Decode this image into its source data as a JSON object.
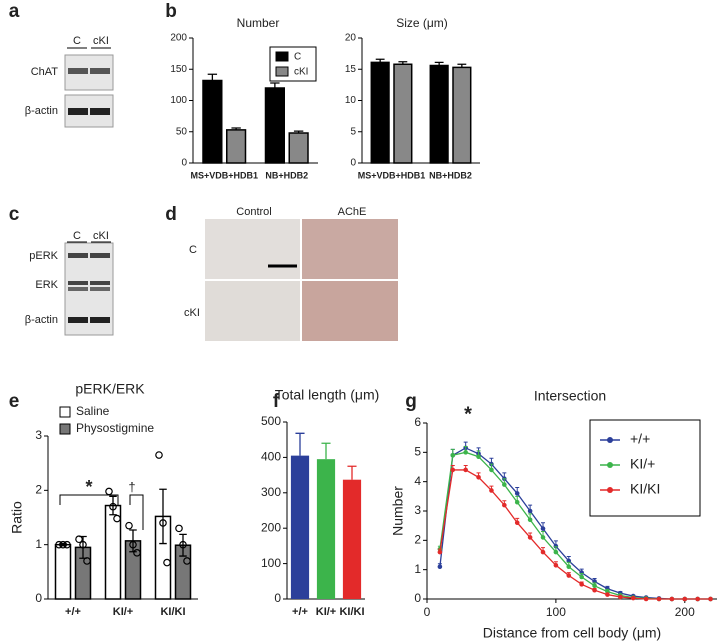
{
  "panel_labels": [
    "a",
    "b",
    "c",
    "d",
    "e",
    "f",
    "g"
  ],
  "blot_a": {
    "columns": [
      "C",
      "cKI"
    ],
    "rows": [
      "ChAT",
      "β-actin"
    ]
  },
  "blot_c": {
    "columns": [
      "C",
      "cKI"
    ],
    "rows": [
      "pERK",
      "ERK",
      "β-actin"
    ]
  },
  "histology": {
    "columns": [
      "Control",
      "AChE"
    ],
    "rows": [
      "C",
      "cKI"
    ]
  },
  "chart_data": [
    {
      "type": "bar",
      "title": "Number",
      "categories": [
        "MS+VDB+HDB1",
        "NB+HDB2"
      ],
      "series": [
        {
          "name": "C",
          "color": "#000000",
          "values": [
            132,
            120
          ],
          "errors": [
            10,
            8
          ]
        },
        {
          "name": "cKI",
          "color": "#888888",
          "values": [
            53,
            48
          ],
          "errors": [
            3,
            3
          ]
        }
      ],
      "ylim": [
        0,
        200
      ],
      "yticks": [
        0,
        50,
        100,
        150,
        200
      ]
    },
    {
      "type": "bar",
      "title": "Size (μm)",
      "categories": [
        "MS+VDB+HDB1",
        "NB+HDB2"
      ],
      "series": [
        {
          "name": "C",
          "color": "#000000",
          "values": [
            16.1,
            15.6
          ],
          "errors": [
            0.5,
            0.5
          ]
        },
        {
          "name": "cKI",
          "color": "#888888",
          "values": [
            15.8,
            15.3
          ],
          "errors": [
            0.4,
            0.5
          ]
        }
      ],
      "ylim": [
        0,
        20
      ],
      "yticks": [
        0,
        5,
        10,
        15,
        20
      ]
    },
    {
      "type": "bar",
      "title": "pERK/ERK",
      "y_label": "Ratio",
      "categories": [
        "+/+",
        "KI/+",
        "KI/KI"
      ],
      "series": [
        {
          "name": "Saline",
          "color": "#ffffff",
          "values": [
            1.0,
            1.72,
            1.52
          ],
          "errors": [
            0.02,
            0.17,
            0.5
          ],
          "points": [
            [
              1,
              1,
              1
            ],
            [
              1.98,
              1.7,
              1.48
            ],
            [
              2.65,
              1.4,
              0.67
            ]
          ]
        },
        {
          "name": "Physostigmine",
          "color": "#777777",
          "values": [
            0.95,
            1.07,
            0.99
          ],
          "errors": [
            0.2,
            0.2,
            0.2
          ],
          "points": [
            [
              1.1,
              1.0,
              0.7
            ],
            [
              1.35,
              1.0,
              0.85
            ],
            [
              1.3,
              1.0,
              0.7
            ]
          ]
        }
      ],
      "ylim": [
        0,
        3
      ],
      "yticks": [
        0,
        1,
        2,
        3
      ],
      "annotations": [
        "*",
        "†"
      ]
    },
    {
      "type": "bar",
      "title": "Total length (μm)",
      "categories": [
        "+/+",
        "KI/+",
        "KI/KI"
      ],
      "values": [
        405,
        395,
        337
      ],
      "errors": [
        63,
        45,
        38
      ],
      "colors": [
        "#2b3f9a",
        "#3cb44b",
        "#e32a2a"
      ],
      "ylim": [
        0,
        500
      ],
      "yticks": [
        0,
        100,
        200,
        300,
        400,
        500
      ]
    },
    {
      "type": "line",
      "title": "Intersection",
      "x_label": "Distance from cell body (μm)",
      "y_label": "Number",
      "annotations": [
        "*"
      ],
      "x": [
        10,
        20,
        30,
        40,
        50,
        60,
        70,
        80,
        90,
        100,
        110,
        120,
        130,
        140,
        150,
        160,
        170,
        180,
        190,
        200,
        210,
        220
      ],
      "series": [
        {
          "name": "+/+",
          "color": "#2b3f9a",
          "values": [
            1.1,
            4.9,
            5.15,
            4.95,
            4.6,
            4.1,
            3.6,
            3.0,
            2.4,
            1.8,
            1.3,
            0.9,
            0.6,
            0.35,
            0.2,
            0.1,
            0.05,
            0.02,
            0,
            0,
            0,
            0
          ],
          "errors": [
            0.1,
            0.2,
            0.2,
            0.2,
            0.2,
            0.2,
            0.2,
            0.2,
            0.2,
            0.18,
            0.15,
            0.12,
            0.1,
            0.08,
            0.05,
            0.03,
            0.02,
            0.01,
            0,
            0,
            0,
            0
          ]
        },
        {
          "name": "KI/+",
          "color": "#3cb44b",
          "values": [
            1.7,
            4.9,
            5.0,
            4.85,
            4.4,
            3.9,
            3.3,
            2.7,
            2.1,
            1.6,
            1.1,
            0.75,
            0.45,
            0.25,
            0.12,
            0.05,
            0.02,
            0,
            0,
            0,
            0,
            0
          ],
          "errors": [
            0.1,
            0.2,
            0.2,
            0.2,
            0.2,
            0.2,
            0.2,
            0.2,
            0.2,
            0.18,
            0.15,
            0.12,
            0.1,
            0.08,
            0.05,
            0.03,
            0.02,
            0,
            0,
            0,
            0,
            0
          ]
        },
        {
          "name": "KI/KI",
          "color": "#e32a2a",
          "values": [
            1.6,
            4.4,
            4.4,
            4.15,
            3.7,
            3.2,
            2.6,
            2.1,
            1.6,
            1.15,
            0.8,
            0.5,
            0.3,
            0.15,
            0.07,
            0.03,
            0,
            0,
            0,
            0,
            0,
            0
          ],
          "errors": [
            0.1,
            0.15,
            0.15,
            0.15,
            0.15,
            0.15,
            0.15,
            0.15,
            0.15,
            0.12,
            0.1,
            0.08,
            0.06,
            0.04,
            0.03,
            0.02,
            0,
            0,
            0,
            0,
            0,
            0
          ]
        }
      ],
      "xlim": [
        0,
        225
      ],
      "xticks": [
        0,
        100,
        200
      ],
      "ylim": [
        0,
        6
      ],
      "yticks": [
        0,
        1,
        2,
        3,
        4,
        5,
        6
      ]
    }
  ]
}
